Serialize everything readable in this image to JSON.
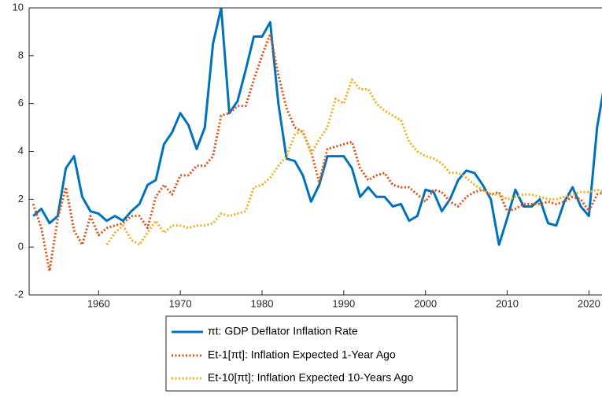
{
  "chart_data": {
    "type": "line",
    "x": [
      1952,
      1953,
      1954,
      1955,
      1956,
      1957,
      1958,
      1959,
      1960,
      1961,
      1962,
      1963,
      1964,
      1965,
      1966,
      1967,
      1968,
      1969,
      1970,
      1971,
      1972,
      1973,
      1974,
      1975,
      1976,
      1977,
      1978,
      1979,
      1980,
      1981,
      1982,
      1983,
      1984,
      1985,
      1986,
      1987,
      1988,
      1989,
      1990,
      1991,
      1992,
      1993,
      1994,
      1995,
      1996,
      1997,
      1998,
      1999,
      2000,
      2001,
      2002,
      2003,
      2004,
      2005,
      2006,
      2007,
      2008,
      2009,
      2010,
      2011,
      2012,
      2013,
      2014,
      2015,
      2016,
      2017,
      2018,
      2019,
      2020,
      2021,
      2022
    ],
    "series": [
      {
        "name": "πt: GDP Deflator Inflation Rate",
        "color": "#0072bd",
        "style": "solid",
        "values": [
          1.3,
          1.6,
          1.0,
          1.3,
          3.3,
          3.8,
          2.1,
          1.5,
          1.4,
          1.1,
          1.3,
          1.1,
          1.5,
          1.8,
          2.6,
          2.8,
          4.3,
          4.8,
          5.6,
          5.1,
          4.1,
          5.0,
          8.5,
          10.0,
          5.6,
          6.1,
          7.4,
          8.8,
          8.8,
          9.4,
          6.0,
          3.7,
          3.6,
          3.0,
          1.9,
          2.6,
          3.8,
          3.8,
          3.8,
          3.3,
          2.1,
          2.5,
          2.1,
          2.1,
          1.7,
          1.8,
          1.1,
          1.3,
          2.4,
          2.3,
          1.5,
          2.0,
          2.8,
          3.2,
          3.1,
          2.6,
          2.0,
          0.1,
          1.2,
          2.4,
          1.7,
          1.7,
          2.0,
          1.0,
          0.9,
          1.9,
          2.5,
          1.7,
          1.3,
          5.0,
          7.0
        ]
      },
      {
        "name": "Et-1[πt]: Inflation Expected 1-Year Ago",
        "color": "#d95319",
        "style": "dotted",
        "values": [
          1.8,
          0.8,
          -1.0,
          1.2,
          2.5,
          0.7,
          0.1,
          1.3,
          0.5,
          0.8,
          0.9,
          1.0,
          1.3,
          1.3,
          0.8,
          2.1,
          2.6,
          2.2,
          3.0,
          3.0,
          3.4,
          3.4,
          3.8,
          5.5,
          5.6,
          5.9,
          5.9,
          7.0,
          8.0,
          8.9,
          7.2,
          5.8,
          5.0,
          4.8,
          4.0,
          2.7,
          4.1,
          4.2,
          4.3,
          4.4,
          3.3,
          2.8,
          3.0,
          3.1,
          2.6,
          2.5,
          2.5,
          2.2,
          1.9,
          2.4,
          2.3,
          1.9,
          1.7,
          2.1,
          2.3,
          2.4,
          2.2,
          2.3,
          1.5,
          1.6,
          1.8,
          1.8,
          1.8,
          1.9,
          1.8,
          1.9,
          2.1,
          2.0,
          1.5,
          2.2,
          2.3
        ]
      },
      {
        "name": "Et-10[πt]: Inflation Expected 10-Years Ago",
        "color": "#edb120",
        "style": "dotted",
        "values": [
          null,
          null,
          null,
          null,
          null,
          null,
          null,
          null,
          null,
          0.1,
          0.6,
          0.9,
          0.3,
          0.1,
          0.6,
          1.1,
          0.6,
          0.9,
          0.9,
          0.8,
          0.9,
          0.9,
          1.0,
          1.4,
          1.3,
          1.4,
          1.5,
          2.5,
          2.6,
          2.9,
          3.4,
          3.8,
          4.7,
          4.9,
          3.9,
          4.5,
          5.0,
          6.2,
          6.0,
          7.0,
          6.6,
          6.6,
          6.0,
          5.7,
          5.5,
          5.3,
          4.4,
          4.0,
          3.8,
          3.7,
          3.5,
          3.1,
          3.1,
          2.9,
          2.6,
          2.4,
          2.2,
          2.2,
          2.0,
          2.1,
          2.2,
          2.2,
          2.1,
          2.0,
          2.0,
          2.1,
          2.2,
          2.3,
          2.3,
          2.4,
          2.3
        ]
      }
    ],
    "xlim": [
      1951.5,
      2021.6
    ],
    "xticks": [
      1960,
      1970,
      1980,
      1990,
      2000,
      2010,
      2020
    ],
    "ylim": [
      -2,
      10
    ],
    "yticks": [
      -2,
      0,
      2,
      4,
      6,
      8,
      10
    ],
    "grid": false,
    "legend": "bottom"
  }
}
